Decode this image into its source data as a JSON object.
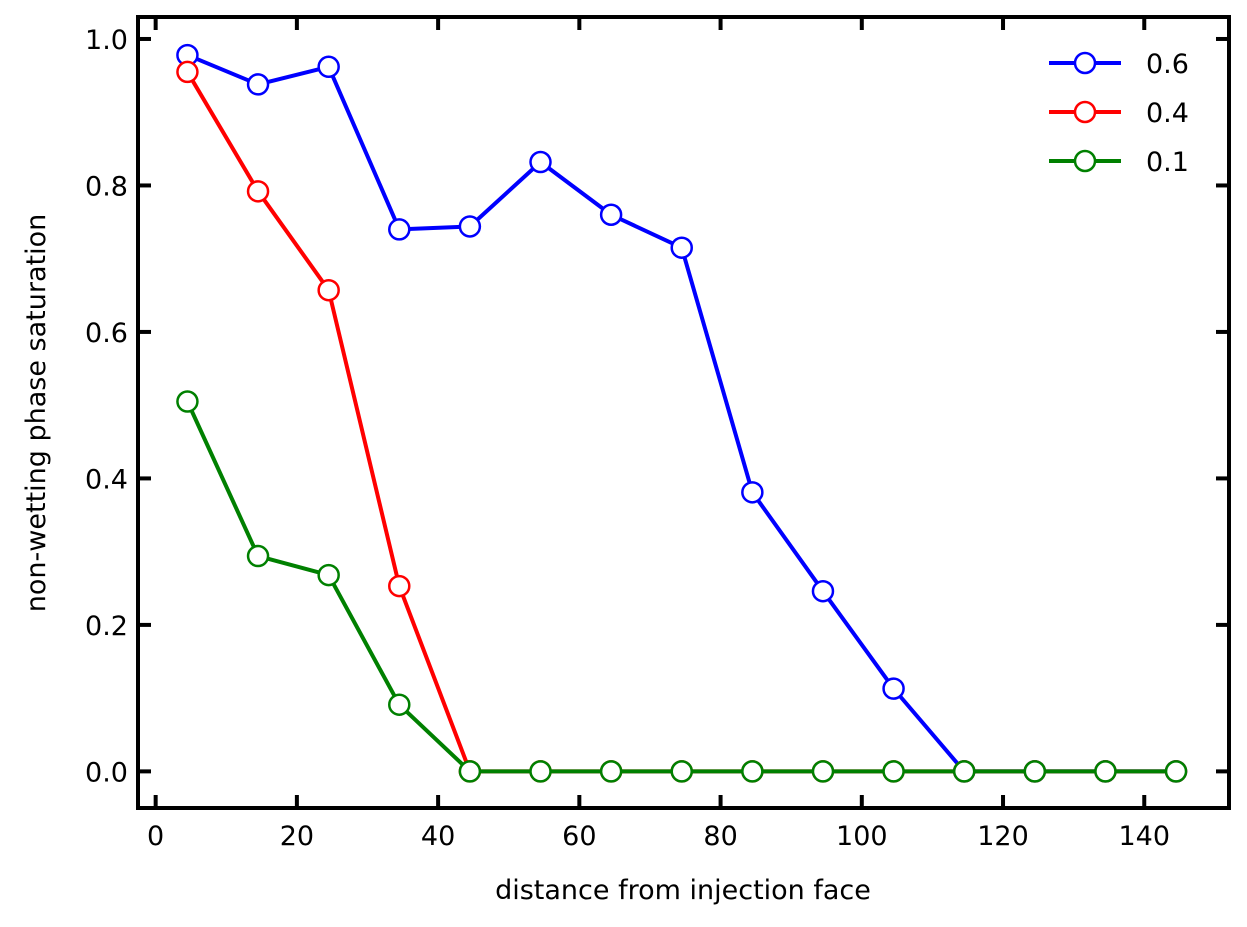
{
  "chart_data": {
    "type": "line",
    "xlabel": "distance from injection face",
    "ylabel": "non-wetting phase saturation",
    "xlim": [
      -2.5,
      152
    ],
    "ylim": [
      -0.05,
      1.03
    ],
    "xticks": [
      0,
      20,
      40,
      60,
      80,
      100,
      120,
      140
    ],
    "xtick_labels": [
      "0",
      "20",
      "40",
      "60",
      "80",
      "100",
      "120",
      "140"
    ],
    "yticks": [
      0.0,
      0.2,
      0.4,
      0.6,
      0.8,
      1.0
    ],
    "ytick_labels": [
      "0.0",
      "0.2",
      "0.4",
      "0.6",
      "0.8",
      "1.0"
    ],
    "grid": false,
    "legend_position": "top-right",
    "series": [
      {
        "name": "0.6",
        "color": "#0000ff",
        "x": [
          4.5,
          14.5,
          24.5,
          34.5,
          44.5,
          54.5,
          64.5,
          74.5,
          84.5,
          94.5,
          104.5,
          114.5,
          124.5,
          134.5,
          144.5
        ],
        "y": [
          0.978,
          0.938,
          0.962,
          0.74,
          0.744,
          0.832,
          0.76,
          0.715,
          0.381,
          0.246,
          0.113,
          0.0,
          0.0,
          0.0,
          0.0
        ]
      },
      {
        "name": "0.4",
        "color": "#ff0000",
        "x": [
          4.5,
          14.5,
          24.5,
          34.5,
          44.5,
          54.5,
          64.5,
          74.5,
          84.5,
          94.5,
          104.5,
          114.5,
          124.5,
          134.5,
          144.5
        ],
        "y": [
          0.955,
          0.792,
          0.657,
          0.253,
          0.0,
          0.0,
          0.0,
          0.0,
          0.0,
          0.0,
          0.0,
          0.0,
          0.0,
          0.0,
          0.0
        ]
      },
      {
        "name": "0.1",
        "color": "#008000",
        "x": [
          4.5,
          14.5,
          24.5,
          34.5,
          44.5,
          54.5,
          64.5,
          74.5,
          84.5,
          94.5,
          104.5,
          114.5,
          124.5,
          134.5,
          144.5
        ],
        "y": [
          0.505,
          0.294,
          0.268,
          0.091,
          0.0,
          0.0,
          0.0,
          0.0,
          0.0,
          0.0,
          0.0,
          0.0,
          0.0,
          0.0,
          0.0
        ]
      }
    ]
  }
}
